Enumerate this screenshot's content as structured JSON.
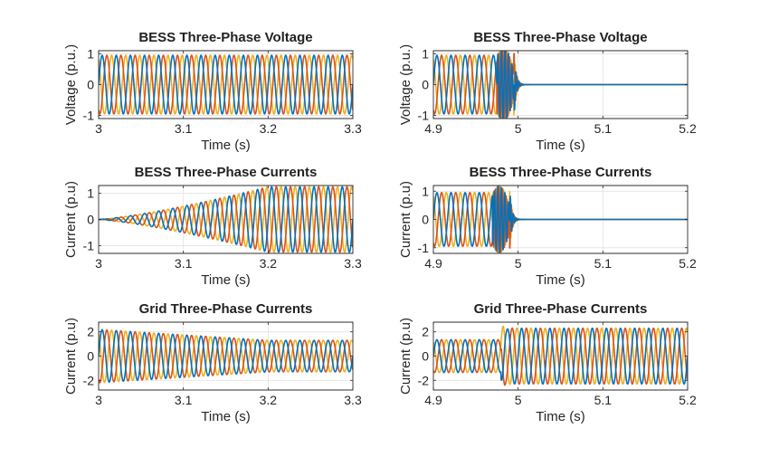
{
  "colors": {
    "series1": "#0072BD",
    "series2": "#D95319",
    "series3": "#EDB120"
  },
  "chart_data": [
    {
      "type": "line",
      "title": "BESS Three-Phase Voltage",
      "xlabel": "Time (s)",
      "ylabel": "Voltage (p.u.)",
      "xlim": [
        3,
        3.3
      ],
      "ylim": [
        -1.1,
        1.1
      ],
      "xticks": [
        3,
        3.1,
        3.2,
        3.3
      ],
      "xticklabels": [
        "3",
        "3.1",
        "3.2",
        "3.3"
      ],
      "yticks": [
        -1,
        0,
        1
      ],
      "yticklabels": [
        "-1",
        "0",
        "1"
      ],
      "grid": true,
      "signal": {
        "kind": "steady",
        "amplitude": 0.95,
        "frequency_hz": 60
      }
    },
    {
      "type": "line",
      "title": "BESS Three-Phase Voltage",
      "xlabel": "Time (s)",
      "ylabel": "Voltage (p.u.)",
      "xlim": [
        4.9,
        5.2
      ],
      "ylim": [
        -1.1,
        1.1
      ],
      "xticks": [
        4.9,
        5,
        5.1,
        5.2
      ],
      "xticklabels": [
        "4.9",
        "5",
        "5.1",
        "5.2"
      ],
      "yticks": [
        -1,
        0,
        1
      ],
      "yticklabels": [
        "-1",
        "0",
        "1"
      ],
      "grid": true,
      "signal": {
        "kind": "trip",
        "amplitude": 0.95,
        "frequency_hz": 60,
        "disturbance_s": 4.975,
        "trip_s": 4.995,
        "spike": 1.15
      }
    },
    {
      "type": "line",
      "title": "BESS Three-Phase Currents",
      "xlabel": "Time (s)",
      "ylabel": "Current (p.u)",
      "xlim": [
        3,
        3.3
      ],
      "ylim": [
        -1.3,
        1.3
      ],
      "xticks": [
        3,
        3.1,
        3.2,
        3.3
      ],
      "xticklabels": [
        "3",
        "3.1",
        "3.2",
        "3.3"
      ],
      "yticks": [
        -1,
        0,
        1
      ],
      "yticklabels": [
        "-1",
        "0",
        "1"
      ],
      "grid": true,
      "signal": {
        "kind": "ramp",
        "start_amplitude": 0.0,
        "end_amplitude": 1.25,
        "ramp_end_s": 3.2,
        "frequency_hz": 60
      }
    },
    {
      "type": "line",
      "title": "BESS Three-Phase Currents",
      "xlabel": "Time (s)",
      "ylabel": "Current (p.u)",
      "xlim": [
        4.9,
        5.2
      ],
      "ylim": [
        -1.2,
        1.2
      ],
      "xticks": [
        4.9,
        5,
        5.1,
        5.2
      ],
      "xticklabels": [
        "4.9",
        "5",
        "5.1",
        "5.2"
      ],
      "yticks": [
        -1,
        0,
        1
      ],
      "yticklabels": [
        "-1",
        "0",
        "1"
      ],
      "grid": true,
      "signal": {
        "kind": "trip",
        "amplitude": 0.95,
        "frequency_hz": 60,
        "disturbance_s": 4.97,
        "trip_s": 4.99,
        "spike": 1.15
      }
    },
    {
      "type": "line",
      "title": "Grid Three-Phase Currents",
      "xlabel": "Time (s)",
      "ylabel": "Current (p.u)",
      "xlim": [
        3,
        3.3
      ],
      "ylim": [
        -2.8,
        2.8
      ],
      "xticks": [
        3,
        3.1,
        3.2,
        3.3
      ],
      "xticklabels": [
        "3",
        "3.1",
        "3.2",
        "3.3"
      ],
      "yticks": [
        -2,
        0,
        2
      ],
      "yticklabels": [
        "-2",
        "0",
        "2"
      ],
      "grid": true,
      "signal": {
        "kind": "decay",
        "start_amplitude": 2.2,
        "end_amplitude": 1.3,
        "settle_s": 3.2,
        "frequency_hz": 60
      }
    },
    {
      "type": "line",
      "title": "Grid Three-Phase Currents",
      "xlabel": "Time (s)",
      "ylabel": "Current (p.u)",
      "xlim": [
        4.9,
        5.2
      ],
      "ylim": [
        -2.8,
        2.8
      ],
      "xticks": [
        4.9,
        5,
        5.1,
        5.2
      ],
      "xticklabels": [
        "4.9",
        "5",
        "5.1",
        "5.2"
      ],
      "yticks": [
        -2,
        0,
        2
      ],
      "yticklabels": [
        "-2",
        "0",
        "2"
      ],
      "grid": true,
      "signal": {
        "kind": "step",
        "before_amplitude": 1.35,
        "after_amplitude": 2.3,
        "step_s": 4.98,
        "frequency_hz": 60
      }
    }
  ]
}
